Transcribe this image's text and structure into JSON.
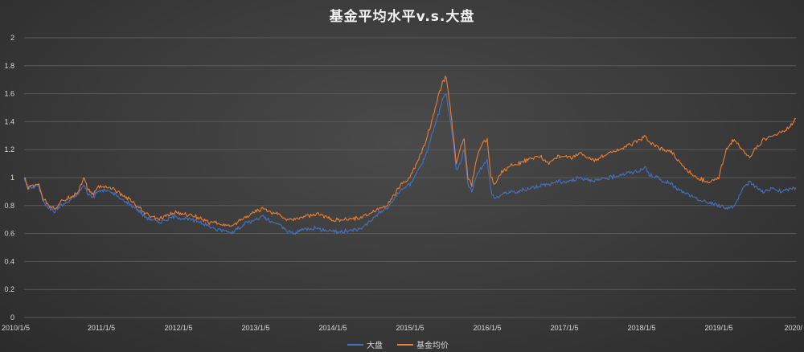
{
  "chart_data": {
    "type": "line",
    "title": "基金平均水平v.s.大盘",
    "xlabel": "",
    "ylabel": "",
    "ylim": [
      0,
      2
    ],
    "yticks": [
      "0",
      "0.2",
      "0.4",
      "0.6",
      "0.8",
      "1",
      "1.2",
      "1.4",
      "1.6",
      "1.8",
      "2"
    ],
    "xticks": [
      "2010/1/5",
      "2011/1/5",
      "2012/1/5",
      "2013/1/5",
      "2014/1/5",
      "2015/1/5",
      "2016/1/5",
      "2017/1/5",
      "2018/1/5",
      "2019/1/5",
      "2020/"
    ],
    "xlim": [
      2010.0,
      2020.0
    ],
    "grid": true,
    "legend_position": "bottom",
    "series": [
      {
        "name": "大盘",
        "color": "#4472c4",
        "x": [
          2010.0,
          2010.05,
          2010.1,
          2010.18,
          2010.25,
          2010.33,
          2010.4,
          2010.47,
          2010.55,
          2010.62,
          2010.7,
          2010.77,
          2010.83,
          2010.9,
          2010.95,
          2011.05,
          2011.15,
          2011.25,
          2011.35,
          2011.45,
          2011.55,
          2011.65,
          2011.75,
          2011.85,
          2011.95,
          2012.05,
          2012.15,
          2012.3,
          2012.4,
          2012.5,
          2012.6,
          2012.7,
          2012.8,
          2012.9,
          2013.0,
          2013.1,
          2013.2,
          2013.3,
          2013.4,
          2013.5,
          2013.6,
          2013.7,
          2013.8,
          2013.9,
          2014.0,
          2014.1,
          2014.2,
          2014.3,
          2014.4,
          2014.5,
          2014.6,
          2014.7,
          2014.8,
          2014.9,
          2015.0,
          2015.1,
          2015.2,
          2015.28,
          2015.35,
          2015.42,
          2015.47,
          2015.52,
          2015.56,
          2015.6,
          2015.65,
          2015.7,
          2015.75,
          2015.8,
          2015.85,
          2015.9,
          2015.95,
          2016.0,
          2016.05,
          2016.1,
          2016.2,
          2016.3,
          2016.4,
          2016.5,
          2016.6,
          2016.7,
          2016.8,
          2016.9,
          2017.0,
          2017.1,
          2017.2,
          2017.3,
          2017.4,
          2017.5,
          2017.6,
          2017.7,
          2017.8,
          2017.9,
          2018.0,
          2018.05,
          2018.1,
          2018.2,
          2018.3,
          2018.4,
          2018.5,
          2018.6,
          2018.7,
          2018.8,
          2018.9,
          2019.0,
          2019.1,
          2019.2,
          2019.3,
          2019.4,
          2019.5,
          2019.6,
          2019.7,
          2019.8,
          2019.9,
          2020.0
        ],
        "values": [
          1.0,
          0.92,
          0.93,
          0.95,
          0.83,
          0.78,
          0.76,
          0.8,
          0.82,
          0.85,
          0.88,
          0.95,
          0.88,
          0.86,
          0.9,
          0.91,
          0.89,
          0.85,
          0.82,
          0.78,
          0.73,
          0.7,
          0.68,
          0.7,
          0.72,
          0.71,
          0.7,
          0.68,
          0.65,
          0.63,
          0.62,
          0.61,
          0.65,
          0.68,
          0.7,
          0.72,
          0.68,
          0.67,
          0.62,
          0.6,
          0.63,
          0.64,
          0.64,
          0.62,
          0.62,
          0.61,
          0.62,
          0.63,
          0.65,
          0.7,
          0.75,
          0.78,
          0.85,
          0.92,
          0.95,
          1.05,
          1.15,
          1.3,
          1.42,
          1.55,
          1.6,
          1.4,
          1.25,
          1.05,
          1.1,
          1.2,
          0.95,
          0.9,
          1.0,
          1.05,
          1.1,
          1.12,
          0.9,
          0.85,
          0.88,
          0.9,
          0.9,
          0.92,
          0.93,
          0.95,
          0.95,
          0.97,
          0.97,
          0.98,
          1.0,
          0.99,
          0.98,
          0.99,
          1.0,
          1.02,
          1.03,
          1.04,
          1.05,
          1.08,
          1.02,
          1.0,
          0.97,
          0.95,
          0.9,
          0.88,
          0.85,
          0.83,
          0.82,
          0.8,
          0.78,
          0.8,
          0.9,
          0.98,
          0.92,
          0.9,
          0.92,
          0.9,
          0.91,
          0.93
        ]
      },
      {
        "name": "基金均价",
        "color": "#ed7d31",
        "x": [
          2010.0,
          2010.05,
          2010.1,
          2010.18,
          2010.25,
          2010.33,
          2010.4,
          2010.47,
          2010.55,
          2010.62,
          2010.7,
          2010.77,
          2010.83,
          2010.9,
          2010.95,
          2011.05,
          2011.15,
          2011.25,
          2011.35,
          2011.45,
          2011.55,
          2011.65,
          2011.75,
          2011.85,
          2011.95,
          2012.05,
          2012.15,
          2012.3,
          2012.4,
          2012.5,
          2012.6,
          2012.7,
          2012.8,
          2012.9,
          2013.0,
          2013.1,
          2013.2,
          2013.3,
          2013.4,
          2013.5,
          2013.6,
          2013.7,
          2013.8,
          2013.9,
          2014.0,
          2014.1,
          2014.2,
          2014.3,
          2014.4,
          2014.5,
          2014.6,
          2014.7,
          2014.8,
          2014.9,
          2015.0,
          2015.1,
          2015.2,
          2015.28,
          2015.35,
          2015.42,
          2015.47,
          2015.52,
          2015.56,
          2015.6,
          2015.65,
          2015.7,
          2015.75,
          2015.8,
          2015.85,
          2015.9,
          2015.95,
          2016.0,
          2016.05,
          2016.1,
          2016.2,
          2016.3,
          2016.4,
          2016.5,
          2016.6,
          2016.7,
          2016.8,
          2016.9,
          2017.0,
          2017.1,
          2017.2,
          2017.3,
          2017.4,
          2017.5,
          2017.6,
          2017.7,
          2017.8,
          2017.9,
          2018.0,
          2018.05,
          2018.1,
          2018.2,
          2018.3,
          2018.4,
          2018.5,
          2018.6,
          2018.7,
          2018.8,
          2018.9,
          2019.0,
          2019.1,
          2019.2,
          2019.3,
          2019.4,
          2019.5,
          2019.6,
          2019.7,
          2019.8,
          2019.9,
          2020.0
        ],
        "values": [
          1.0,
          0.93,
          0.94,
          0.96,
          0.85,
          0.8,
          0.78,
          0.82,
          0.85,
          0.87,
          0.9,
          1.0,
          0.91,
          0.88,
          0.93,
          0.94,
          0.92,
          0.88,
          0.85,
          0.8,
          0.75,
          0.72,
          0.7,
          0.73,
          0.75,
          0.74,
          0.73,
          0.71,
          0.68,
          0.67,
          0.66,
          0.65,
          0.7,
          0.73,
          0.76,
          0.78,
          0.75,
          0.74,
          0.7,
          0.7,
          0.72,
          0.73,
          0.74,
          0.72,
          0.7,
          0.69,
          0.7,
          0.71,
          0.72,
          0.75,
          0.78,
          0.8,
          0.88,
          0.96,
          1.0,
          1.12,
          1.25,
          1.4,
          1.55,
          1.68,
          1.72,
          1.5,
          1.3,
          1.1,
          1.2,
          1.28,
          1.0,
          0.95,
          1.1,
          1.2,
          1.25,
          1.27,
          1.0,
          0.95,
          1.05,
          1.08,
          1.1,
          1.12,
          1.14,
          1.15,
          1.1,
          1.15,
          1.15,
          1.14,
          1.18,
          1.15,
          1.12,
          1.15,
          1.18,
          1.2,
          1.22,
          1.25,
          1.28,
          1.3,
          1.25,
          1.22,
          1.2,
          1.18,
          1.1,
          1.05,
          1.0,
          0.98,
          0.97,
          1.0,
          1.2,
          1.28,
          1.2,
          1.15,
          1.22,
          1.28,
          1.3,
          1.32,
          1.35,
          1.42
        ]
      }
    ]
  }
}
